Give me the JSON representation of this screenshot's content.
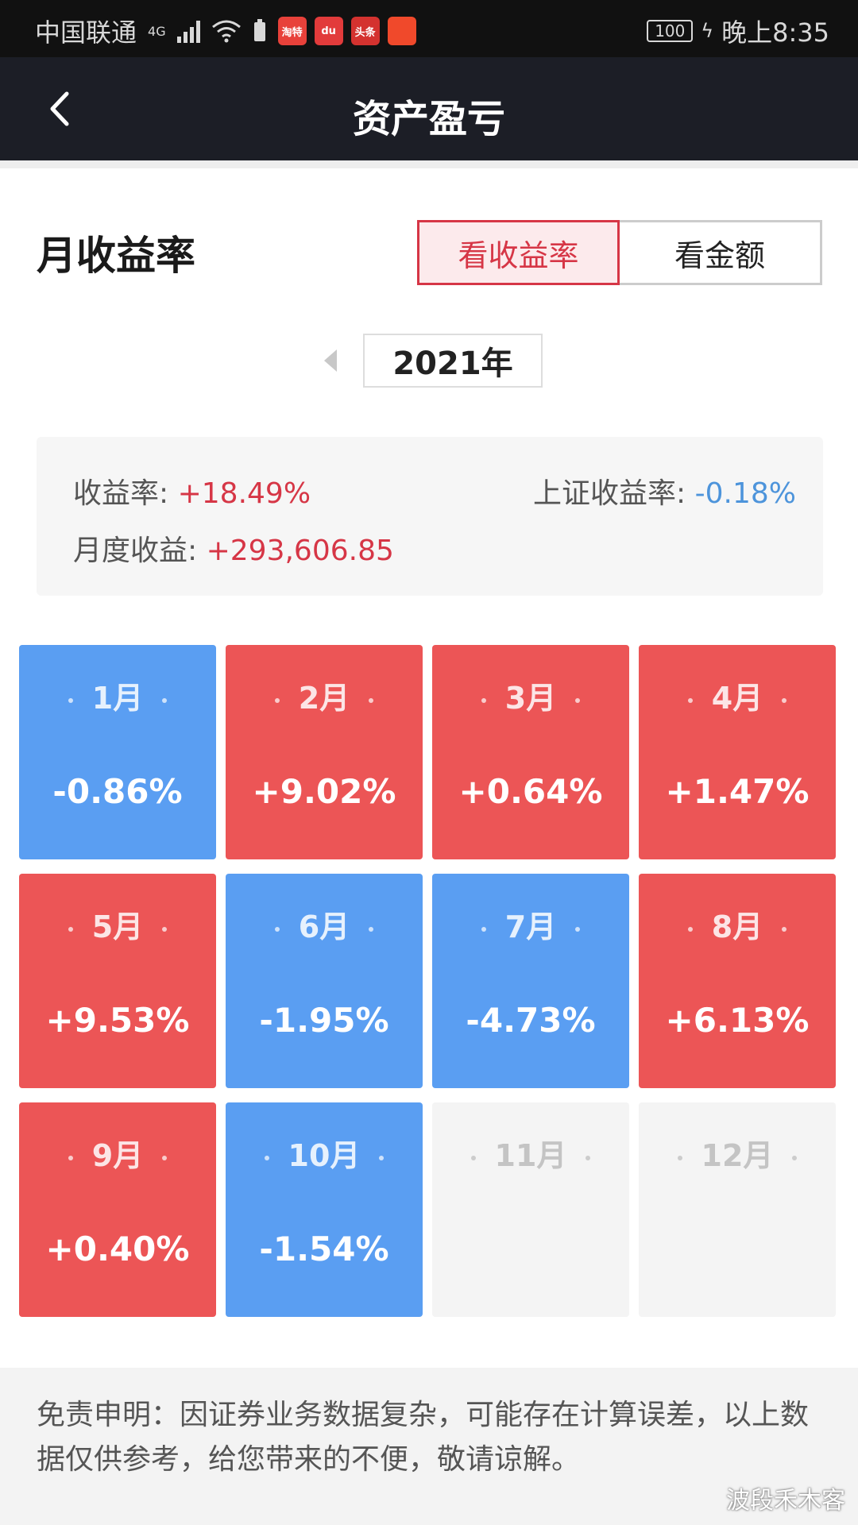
{
  "status_bar": {
    "carrier": "中国联通",
    "network": "4G",
    "apps": [
      {
        "icon": "taobao-special-icon",
        "label": "淘特",
        "color": "#e8413a"
      },
      {
        "icon": "baidu-map-icon",
        "label": "du",
        "color": "#e23b3b"
      },
      {
        "icon": "toutiao-icon",
        "label": "头条",
        "color": "#d4322f"
      },
      {
        "icon": "news-app-icon",
        "label": "",
        "color": "#f0492b"
      }
    ],
    "battery": "100",
    "time": "晚上8:35"
  },
  "header": {
    "title": "资产盈亏"
  },
  "section": {
    "title": "月收益率",
    "toggle": {
      "rate_label": "看收益率",
      "amount_label": "看金额",
      "selected": "rate"
    }
  },
  "year_selector": {
    "year": "2021年"
  },
  "summary": {
    "rate_label": "收益率:",
    "rate_value": "+18.49%",
    "index_label": "上证收益率:",
    "index_value": "-0.18%",
    "monthly_label": "月度收益:",
    "monthly_value": "+293,606.85"
  },
  "months": [
    {
      "label": "1月",
      "value": "-0.86%",
      "state": "neg"
    },
    {
      "label": "2月",
      "value": "+9.02%",
      "state": "pos"
    },
    {
      "label": "3月",
      "value": "+0.64%",
      "state": "pos"
    },
    {
      "label": "4月",
      "value": "+1.47%",
      "state": "pos"
    },
    {
      "label": "5月",
      "value": "+9.53%",
      "state": "pos"
    },
    {
      "label": "6月",
      "value": "-1.95%",
      "state": "neg"
    },
    {
      "label": "7月",
      "value": "-4.73%",
      "state": "neg"
    },
    {
      "label": "8月",
      "value": "+6.13%",
      "state": "pos"
    },
    {
      "label": "9月",
      "value": "+0.40%",
      "state": "pos"
    },
    {
      "label": "10月",
      "value": "-1.54%",
      "state": "neg"
    },
    {
      "label": "11月",
      "value": "",
      "state": "empty"
    },
    {
      "label": "12月",
      "value": "",
      "state": "empty"
    }
  ],
  "footer": {
    "disclaimer": "免责申明：因证券业务数据复杂，可能存在计算误差，以上数据仅供参考，给您带来的不便，敬请谅解。",
    "watermark": "波段禾木客"
  },
  "colors": {
    "positive": "#ec5556",
    "negative": "#5a9ef2",
    "accent_red": "#d63646",
    "accent_blue": "#4d94db"
  }
}
